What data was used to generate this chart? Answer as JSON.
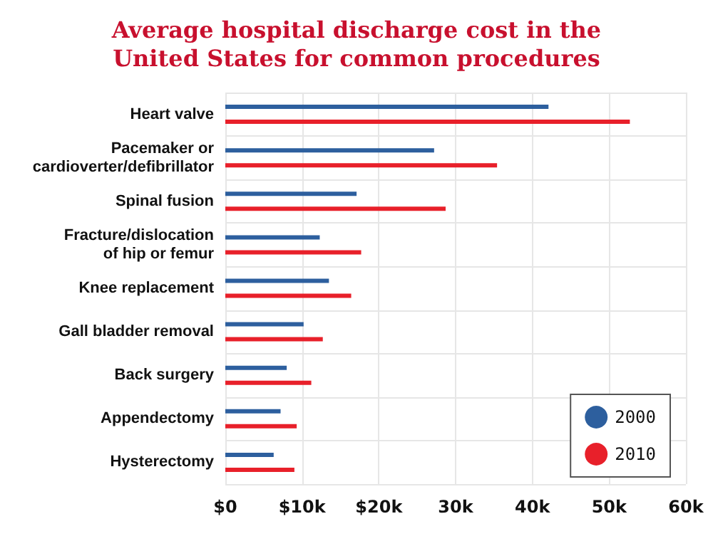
{
  "chart_data": {
    "type": "bar",
    "orientation": "horizontal",
    "title": "Average hospital discharge cost in the\nUnited States for common procedures",
    "categories": [
      "Heart valve",
      "Pacemaker or\ncardioverter/defibrillator",
      "Spinal fusion",
      "Fracture/dislocation\nof hip or femur",
      "Knee replacement",
      "Gall bladder removal",
      "Back surgery",
      "Appendectomy",
      "Hysterectomy"
    ],
    "series": [
      {
        "name": "2000",
        "color": "#2d5f9e",
        "values": [
          42.1,
          27.2,
          17.1,
          12.3,
          13.5,
          10.2,
          8.0,
          7.2,
          6.3
        ]
      },
      {
        "name": "2010",
        "color": "#e8202a",
        "values": [
          52.7,
          35.4,
          28.7,
          17.7,
          16.4,
          12.7,
          11.2,
          9.3,
          9.0
        ]
      }
    ],
    "xlim": [
      0,
      60
    ],
    "xticks": [
      {
        "value": 0,
        "label": "$0"
      },
      {
        "value": 10,
        "label": "$10k"
      },
      {
        "value": 20,
        "label": "$20k"
      },
      {
        "value": 30,
        "label": "30k"
      },
      {
        "value": 40,
        "label": "40k"
      },
      {
        "value": 50,
        "label": "50k"
      },
      {
        "value": 60,
        "label": "60k"
      }
    ],
    "grid": true,
    "legend": "bottom right"
  }
}
